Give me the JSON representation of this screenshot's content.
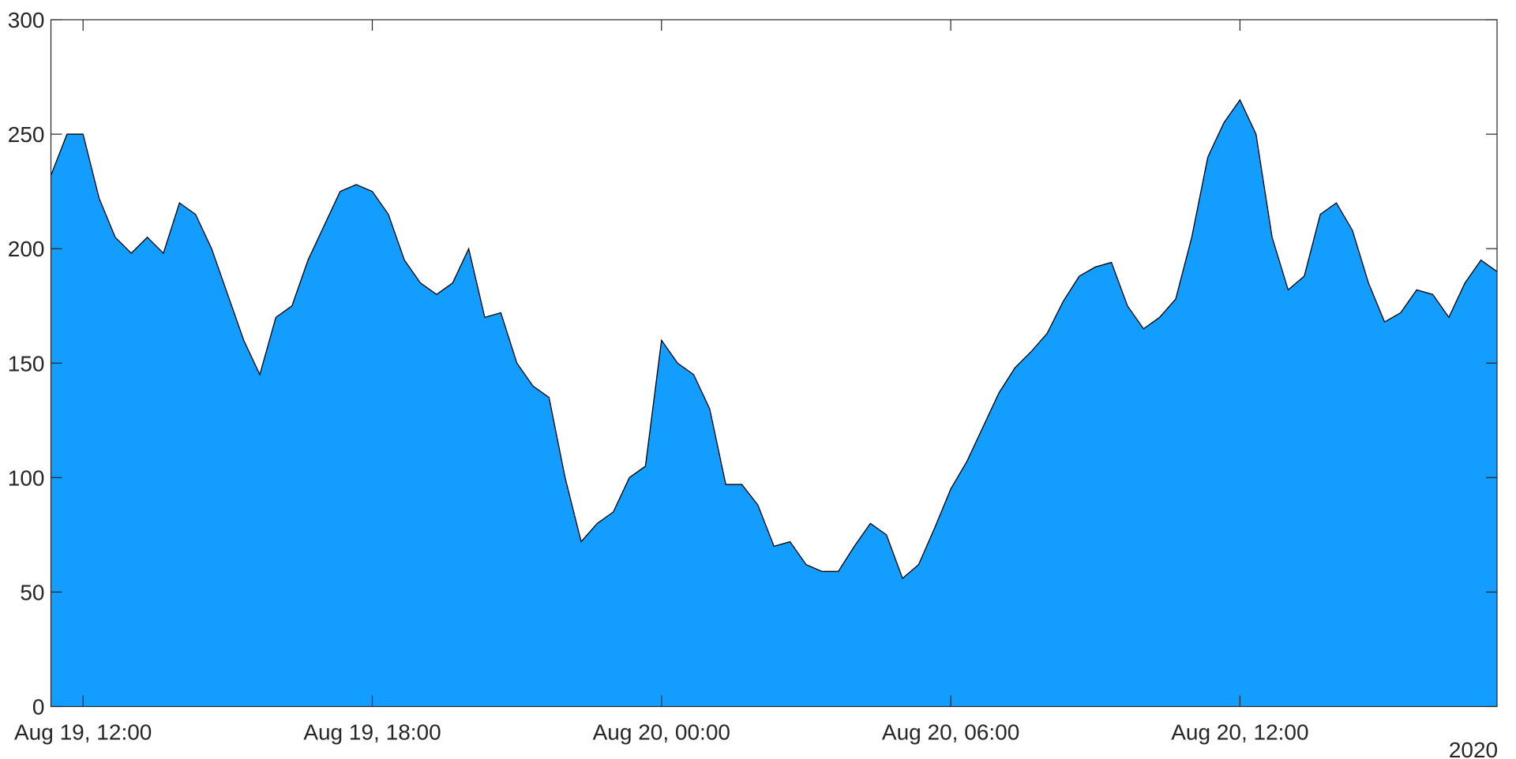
{
  "chart_data": {
    "type": "area",
    "x": [
      "2020-08-19T11:20",
      "2020-08-19T11:40",
      "2020-08-19T12:00",
      "2020-08-19T12:20",
      "2020-08-19T12:40",
      "2020-08-19T13:00",
      "2020-08-19T13:20",
      "2020-08-19T13:40",
      "2020-08-19T14:00",
      "2020-08-19T14:20",
      "2020-08-19T14:40",
      "2020-08-19T15:00",
      "2020-08-19T15:20",
      "2020-08-19T15:40",
      "2020-08-19T16:00",
      "2020-08-19T16:20",
      "2020-08-19T16:40",
      "2020-08-19T17:00",
      "2020-08-19T17:20",
      "2020-08-19T17:40",
      "2020-08-19T18:00",
      "2020-08-19T18:20",
      "2020-08-19T18:40",
      "2020-08-19T19:00",
      "2020-08-19T19:20",
      "2020-08-19T19:40",
      "2020-08-19T20:00",
      "2020-08-19T20:20",
      "2020-08-19T20:40",
      "2020-08-19T21:00",
      "2020-08-19T21:20",
      "2020-08-19T21:40",
      "2020-08-19T22:00",
      "2020-08-19T22:20",
      "2020-08-19T22:40",
      "2020-08-19T23:00",
      "2020-08-19T23:20",
      "2020-08-19T23:40",
      "2020-08-20T00:00",
      "2020-08-20T00:20",
      "2020-08-20T00:40",
      "2020-08-20T01:00",
      "2020-08-20T01:20",
      "2020-08-20T01:40",
      "2020-08-20T02:00",
      "2020-08-20T02:20",
      "2020-08-20T02:40",
      "2020-08-20T03:00",
      "2020-08-20T03:20",
      "2020-08-20T03:40",
      "2020-08-20T04:00",
      "2020-08-20T04:20",
      "2020-08-20T04:40",
      "2020-08-20T05:00",
      "2020-08-20T05:20",
      "2020-08-20T05:40",
      "2020-08-20T06:00",
      "2020-08-20T06:20",
      "2020-08-20T06:40",
      "2020-08-20T07:00",
      "2020-08-20T07:20",
      "2020-08-20T07:40",
      "2020-08-20T08:00",
      "2020-08-20T08:20",
      "2020-08-20T08:40",
      "2020-08-20T09:00",
      "2020-08-20T09:20",
      "2020-08-20T09:40",
      "2020-08-20T10:00",
      "2020-08-20T10:20",
      "2020-08-20T10:40",
      "2020-08-20T11:00",
      "2020-08-20T11:20",
      "2020-08-20T11:40",
      "2020-08-20T12:00",
      "2020-08-20T12:20",
      "2020-08-20T12:40",
      "2020-08-20T13:00",
      "2020-08-20T13:20",
      "2020-08-20T13:40",
      "2020-08-20T14:00",
      "2020-08-20T14:20",
      "2020-08-20T14:40",
      "2020-08-20T15:00",
      "2020-08-20T15:20",
      "2020-08-20T15:40",
      "2020-08-20T16:00",
      "2020-08-20T16:20",
      "2020-08-20T16:40",
      "2020-08-20T17:00",
      "2020-08-20T17:20"
    ],
    "values": [
      232,
      250,
      250,
      222,
      205,
      198,
      205,
      198,
      220,
      215,
      200,
      180,
      160,
      145,
      170,
      175,
      195,
      210,
      225,
      228,
      225,
      215,
      195,
      185,
      180,
      185,
      200,
      170,
      172,
      150,
      140,
      135,
      100,
      72,
      80,
      85,
      100,
      105,
      160,
      150,
      145,
      130,
      97,
      97,
      88,
      70,
      72,
      62,
      59,
      59,
      70,
      80,
      75,
      56,
      62,
      78,
      95,
      107,
      122,
      137,
      148,
      155,
      163,
      177,
      188,
      192,
      194,
      175,
      165,
      170,
      178,
      205,
      240,
      255,
      265,
      250,
      205,
      182,
      188,
      215,
      220,
      208,
      185,
      168,
      172,
      182,
      180,
      170,
      185,
      195,
      190
    ],
    "color": "#139dff",
    "edge_color": "#000000",
    "xlim": [
      "2020-08-19T11:20",
      "2020-08-20T17:20"
    ],
    "xticks": [
      {
        "value": "2020-08-19T12:00",
        "label": "Aug 19, 12:00"
      },
      {
        "value": "2020-08-19T18:00",
        "label": "Aug 19, 18:00"
      },
      {
        "value": "2020-08-20T00:00",
        "label": "Aug 20, 00:00"
      },
      {
        "value": "2020-08-20T06:00",
        "label": "Aug 20, 06:00"
      },
      {
        "value": "2020-08-20T12:00",
        "label": "Aug 20, 12:00"
      }
    ],
    "x_secondary_label": "2020",
    "ylim": [
      0,
      300
    ],
    "yticks": [
      0,
      50,
      100,
      150,
      200,
      250,
      300
    ]
  }
}
